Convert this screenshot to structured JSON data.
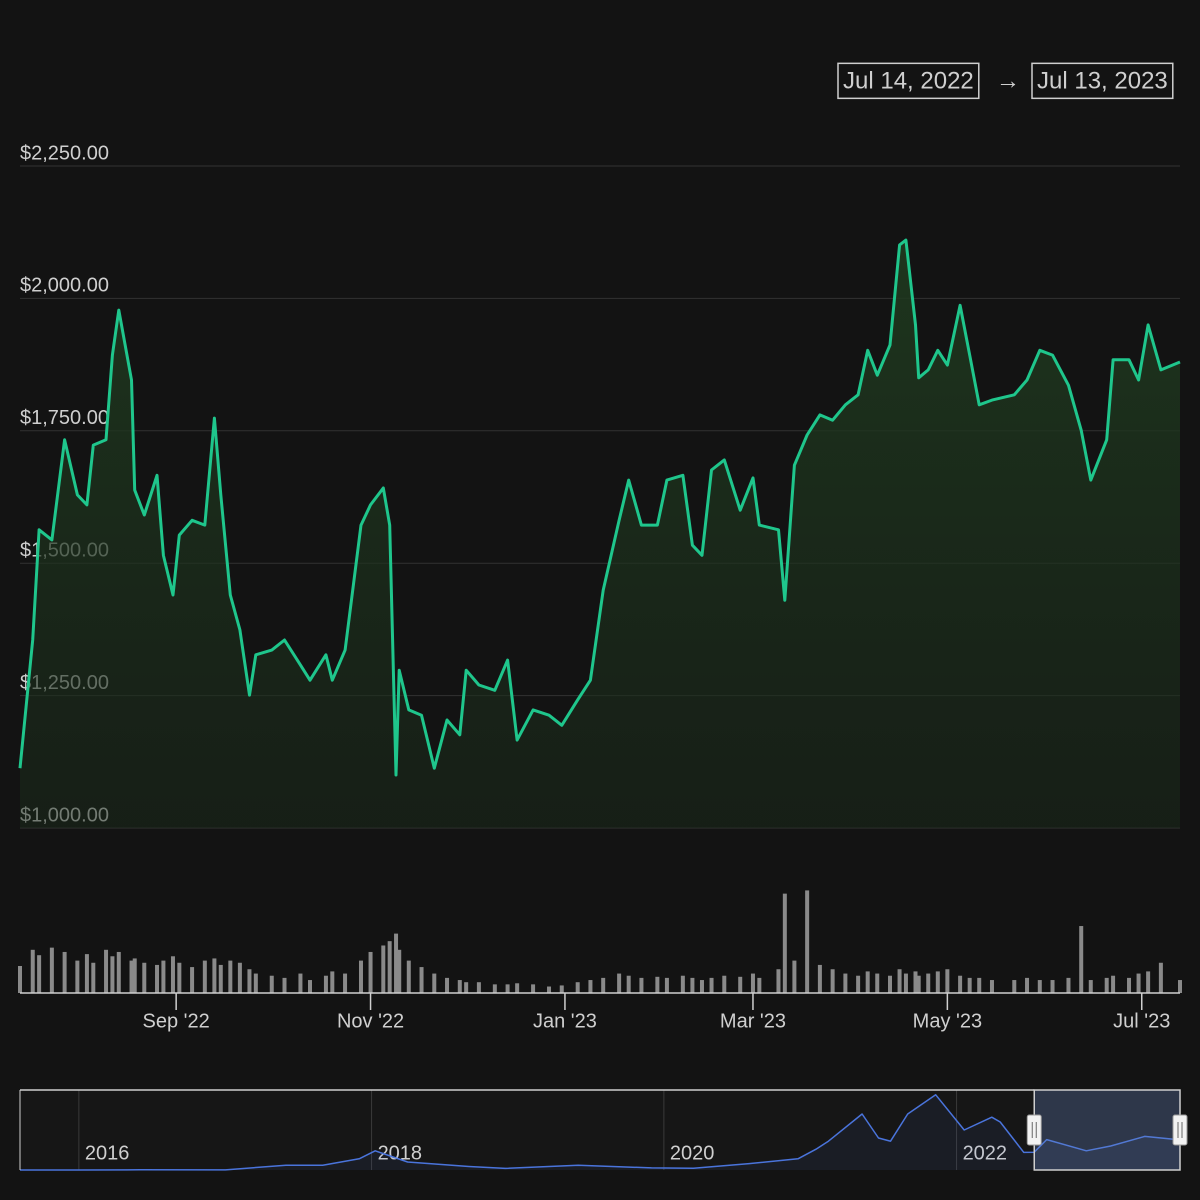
{
  "range_selector": {
    "from": "Jul 14, 2022",
    "separator": "→",
    "to": "Jul 13, 2023"
  },
  "chart_data": [
    {
      "type": "line",
      "color": "#1fc68c",
      "volume_color": "#8a8a8a",
      "grid": true,
      "xlim": [
        "2022-07-14",
        "2023-07-13"
      ],
      "xticks": [
        {
          "value": "2022-09-01",
          "label": "Sep '22"
        },
        {
          "value": "2022-11-01",
          "label": "Nov '22"
        },
        {
          "value": "2023-01-01",
          "label": "Jan '23"
        },
        {
          "value": "2023-03-01",
          "label": "Mar '23"
        },
        {
          "value": "2023-05-01",
          "label": "May '23"
        },
        {
          "value": "2023-07-01",
          "label": "Jul '23"
        }
      ],
      "ylim": [
        1000,
        2250
      ],
      "yticks": [
        {
          "value": 1000,
          "label": "$1,000.00"
        },
        {
          "value": 1250,
          "label": "$1,250.00"
        },
        {
          "value": 1500,
          "label": "$1,500.00"
        },
        {
          "value": 1750,
          "label": "$1,750.00"
        },
        {
          "value": 2000,
          "label": "$2,000.00"
        },
        {
          "value": 2250,
          "label": "$2,250.00"
        }
      ],
      "volume_ylim": [
        0,
        100
      ],
      "x": [
        "2022-07-14",
        "2022-07-18",
        "2022-07-20",
        "2022-07-24",
        "2022-07-28",
        "2022-08-01",
        "2022-08-04",
        "2022-08-06",
        "2022-08-10",
        "2022-08-12",
        "2022-08-14",
        "2022-08-18",
        "2022-08-19",
        "2022-08-22",
        "2022-08-26",
        "2022-08-28",
        "2022-08-31",
        "2022-09-02",
        "2022-09-06",
        "2022-09-10",
        "2022-09-13",
        "2022-09-15",
        "2022-09-18",
        "2022-09-21",
        "2022-09-24",
        "2022-09-26",
        "2022-10-01",
        "2022-10-05",
        "2022-10-10",
        "2022-10-13",
        "2022-10-18",
        "2022-10-20",
        "2022-10-24",
        "2022-10-29",
        "2022-11-01",
        "2022-11-05",
        "2022-11-07",
        "2022-11-09",
        "2022-11-10",
        "2022-11-13",
        "2022-11-17",
        "2022-11-21",
        "2022-11-25",
        "2022-11-29",
        "2022-12-01",
        "2022-12-05",
        "2022-12-10",
        "2022-12-14",
        "2022-12-17",
        "2022-12-22",
        "2022-12-27",
        "2022-12-31",
        "2023-01-05",
        "2023-01-09",
        "2023-01-13",
        "2023-01-18",
        "2023-01-21",
        "2023-01-25",
        "2023-01-30",
        "2023-02-02",
        "2023-02-07",
        "2023-02-10",
        "2023-02-13",
        "2023-02-16",
        "2023-02-20",
        "2023-02-25",
        "2023-03-01",
        "2023-03-03",
        "2023-03-09",
        "2023-03-11",
        "2023-03-14",
        "2023-03-18",
        "2023-03-22",
        "2023-03-26",
        "2023-03-30",
        "2023-04-03",
        "2023-04-06",
        "2023-04-09",
        "2023-04-13",
        "2023-04-16",
        "2023-04-18",
        "2023-04-21",
        "2023-04-22",
        "2023-04-25",
        "2023-04-28",
        "2023-05-01",
        "2023-05-05",
        "2023-05-08",
        "2023-05-11",
        "2023-05-15",
        "2023-05-22",
        "2023-05-26",
        "2023-05-30",
        "2023-06-03",
        "2023-06-08",
        "2023-06-12",
        "2023-06-15",
        "2023-06-20",
        "2023-06-22",
        "2023-06-27",
        "2023-06-30",
        "2023-07-03",
        "2023-07-07",
        "2023-07-13"
      ],
      "values": [
        1113,
        1355,
        1563,
        1544,
        1733,
        1629,
        1610,
        1723,
        1733,
        1893,
        1978,
        1846,
        1638,
        1591,
        1666,
        1515,
        1440,
        1553,
        1581,
        1572,
        1774,
        1629,
        1440,
        1374,
        1251,
        1327,
        1336,
        1355,
        1308,
        1279,
        1327,
        1279,
        1336,
        1572,
        1610,
        1642,
        1572,
        1100,
        1298,
        1223,
        1213,
        1113,
        1204,
        1176,
        1298,
        1270,
        1260,
        1317,
        1166,
        1223,
        1213,
        1194,
        1242,
        1279,
        1449,
        1581,
        1657,
        1572,
        1572,
        1657,
        1666,
        1534,
        1515,
        1676,
        1695,
        1600,
        1661,
        1572,
        1563,
        1430,
        1685,
        1742,
        1780,
        1770,
        1799,
        1818,
        1902,
        1855,
        1912,
        2101,
        2110,
        1950,
        1850,
        1865,
        1902,
        1874,
        1987,
        1893,
        1799,
        1808,
        1818,
        1846,
        1902,
        1893,
        1836,
        1751,
        1657,
        1733,
        1884,
        1884,
        1846,
        1950,
        1865,
        1880
      ],
      "volume": [
        25,
        40,
        35,
        42,
        38,
        30,
        36,
        28,
        40,
        34,
        38,
        30,
        32,
        28,
        26,
        30,
        34,
        28,
        24,
        30,
        32,
        26,
        30,
        28,
        22,
        18,
        16,
        14,
        18,
        12,
        16,
        20,
        18,
        30,
        38,
        44,
        48,
        55,
        40,
        30,
        24,
        18,
        14,
        12,
        10,
        10,
        8,
        8,
        9,
        8,
        6,
        7,
        10,
        12,
        14,
        18,
        16,
        14,
        15,
        14,
        16,
        14,
        12,
        14,
        16,
        15,
        18,
        14,
        22,
        92,
        30,
        95,
        26,
        22,
        18,
        16,
        20,
        18,
        16,
        22,
        18,
        20,
        16,
        18,
        20,
        22,
        16,
        14,
        14,
        12,
        12,
        14,
        12,
        12,
        14,
        62,
        12,
        14,
        16,
        14,
        18,
        20,
        28,
        12
      ]
    },
    {
      "type": "line",
      "color": "#4a74dc",
      "xlim": [
        "2015-08-07",
        "2023-07-13"
      ],
      "ylim": [
        0,
        5000
      ],
      "xticks": [
        {
          "value": "2016-01-01",
          "label": "2016"
        },
        {
          "value": "2018-01-01",
          "label": "2018"
        },
        {
          "value": "2020-01-01",
          "label": "2020"
        },
        {
          "value": "2022-01-01",
          "label": "2022"
        }
      ],
      "x": [
        "2015-08-07",
        "2016-01-01",
        "2016-06-01",
        "2017-01-01",
        "2017-06-01",
        "2017-09-01",
        "2017-12-01",
        "2018-01-10",
        "2018-04-01",
        "2018-09-01",
        "2018-12-01",
        "2019-06-01",
        "2019-12-01",
        "2020-03-15",
        "2020-08-01",
        "2020-12-01",
        "2021-01-15",
        "2021-02-15",
        "2021-05-10",
        "2021-06-20",
        "2021-07-20",
        "2021-09-01",
        "2021-11-10",
        "2022-01-20",
        "2022-03-30",
        "2022-04-20",
        "2022-06-18",
        "2022-07-14",
        "2022-08-14",
        "2022-11-21",
        "2023-01-21",
        "2023-04-16",
        "2023-07-13"
      ],
      "values": [
        1,
        1,
        14,
        8,
        300,
        300,
        700,
        1200,
        500,
        220,
        100,
        300,
        130,
        110,
        400,
        700,
        1300,
        1800,
        3500,
        2000,
        1800,
        3500,
        4700,
        2500,
        3300,
        3000,
        1100,
        1113,
        1900,
        1200,
        1500,
        2100,
        1880
      ]
    }
  ]
}
